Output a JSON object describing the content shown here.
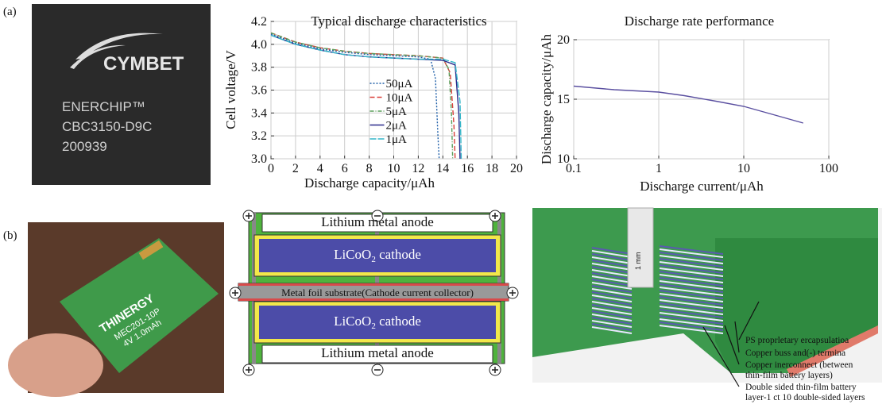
{
  "panel_labels": [
    "(a)",
    "(b)"
  ],
  "chip_photo": {
    "logo": "CYMBET",
    "lines": [
      "ENERCHIP™",
      "CBC3150-D9C",
      "200939"
    ]
  },
  "chart_data": [
    {
      "type": "line",
      "title": "Typical discharge characteristics",
      "xlabel": "Discharge capacity/μAh",
      "ylabel": "Cell voltage/V",
      "xlim": [
        0,
        20
      ],
      "xticks": [
        0,
        2,
        4,
        6,
        8,
        10,
        12,
        14,
        16,
        18,
        20
      ],
      "ylim": [
        3.0,
        4.2
      ],
      "yticks": [
        {
          "value": 3,
          "label": "3.0"
        },
        3.2,
        3.4,
        3.6,
        3.8,
        {
          "value": 4,
          "label": "4.0"
        },
        4.2
      ],
      "grid": true,
      "legend": "center",
      "series": [
        {
          "name": "50μA",
          "color": "#1f5fa8",
          "dash": "2 2",
          "x": [
            0,
            2,
            4,
            6,
            8,
            10,
            12,
            13,
            13.4,
            13.6,
            13.7
          ],
          "values": [
            4.09,
            4.01,
            3.96,
            3.93,
            3.91,
            3.9,
            3.89,
            3.87,
            3.7,
            3.2,
            3.0
          ]
        },
        {
          "name": "10μA",
          "color": "#d9403a",
          "dash": "6 3",
          "x": [
            0,
            2,
            4,
            6,
            8,
            10,
            12,
            14,
            14.6,
            14.9,
            15.0
          ],
          "values": [
            4.1,
            4.02,
            3.97,
            3.94,
            3.92,
            3.91,
            3.9,
            3.88,
            3.75,
            3.3,
            3.0
          ]
        },
        {
          "name": "5μA",
          "color": "#5a9e5a",
          "dash": "5 2 1 2",
          "x": [
            0,
            2,
            4,
            6,
            8,
            10,
            12,
            14,
            14.5,
            14.7,
            14.8
          ],
          "values": [
            4.1,
            4.02,
            3.97,
            3.94,
            3.92,
            3.91,
            3.9,
            3.88,
            3.78,
            3.4,
            3.0
          ]
        },
        {
          "name": "2μA",
          "color": "#2b2b8c",
          "dash": "none",
          "x": [
            0,
            2,
            4,
            6,
            8,
            10,
            12,
            14,
            15,
            15.3,
            15.4
          ],
          "values": [
            4.08,
            4.0,
            3.95,
            3.91,
            3.89,
            3.88,
            3.87,
            3.86,
            3.82,
            3.4,
            3.0
          ]
        },
        {
          "name": "1μA",
          "color": "#33b5c8",
          "dash": "8 2",
          "x": [
            0,
            2,
            4,
            6,
            8,
            10,
            12,
            14,
            15,
            15.4,
            15.5
          ],
          "values": [
            4.08,
            4.0,
            3.95,
            3.91,
            3.89,
            3.88,
            3.87,
            3.87,
            3.84,
            3.5,
            3.0
          ]
        }
      ]
    },
    {
      "type": "line",
      "title": "Discharge rate performance",
      "xlabel": "Discharge current/μAh",
      "ylabel": "Discharge capacity/μAh",
      "xscale": "log",
      "xlim": [
        0.1,
        100
      ],
      "xticks": [
        0.1,
        1,
        10,
        100
      ],
      "ylim": [
        10,
        20
      ],
      "yticks": [
        10,
        15,
        20
      ],
      "grid": true,
      "series": [
        {
          "color": "#5a4fa0",
          "x": [
            0.1,
            0.3,
            1,
            2,
            5,
            10,
            20,
            50
          ],
          "values": [
            16.1,
            15.8,
            15.6,
            15.3,
            14.8,
            14.4,
            13.8,
            13.0
          ]
        }
      ]
    }
  ],
  "thinergy_photo": {
    "brand": "THINERGY",
    "lines": [
      "MEC201-10P",
      "4V 1.0mAh"
    ]
  },
  "cell_diagram": {
    "layers": [
      {
        "text": "Lithium metal anode"
      },
      {
        "text": "LiCoO",
        "subscript": "2",
        "suffix": " cathode"
      },
      {
        "text": "Metal foil substrate(Cathode current collector)"
      },
      {
        "text": "LiCoO",
        "subscript": "2",
        "suffix": " cathode"
      },
      {
        "text": "Lithium metal anode"
      }
    ]
  },
  "stack_render": {
    "ruler": "1 mm",
    "callouts": [
      [
        "PS proprletary ercapsulatioa"
      ],
      [
        "Copper buss and(-) termina"
      ],
      [
        "Copper inerconnect (between",
        "thin-film battery layers)"
      ],
      [
        "Double sided thin-film battery",
        "layer-1 ct 10 double-sided layers"
      ]
    ]
  }
}
